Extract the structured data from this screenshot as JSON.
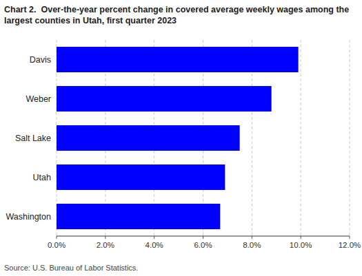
{
  "chart_data": {
    "type": "bar",
    "orientation": "horizontal",
    "title": "Chart 2.  Over-the-year percent change in covered average weekly wages among the",
    "subtitle": "largest counties in Utah, first quarter 2023",
    "categories": [
      "Washington",
      "Utah",
      "Salt Lake",
      "Weber",
      "Davis"
    ],
    "values": [
      0.067,
      0.069,
      0.075,
      0.088,
      0.099
    ],
    "color": "#0000FF",
    "xlim": [
      0,
      0.12
    ],
    "xticks": [
      {
        "value": 0.0,
        "label": "0.0%"
      },
      {
        "value": 0.02,
        "label": "2.0%"
      },
      {
        "value": 0.04,
        "label": "4.0%"
      },
      {
        "value": 0.06,
        "label": "6.0%"
      },
      {
        "value": 0.08,
        "label": "8.0%"
      },
      {
        "value": 0.1,
        "label": "10.0%"
      },
      {
        "value": 0.12,
        "label": "12.0%"
      }
    ],
    "grid": true,
    "annotations": [
      "Source: U.S. Bureau of Labor Statistics."
    ]
  }
}
